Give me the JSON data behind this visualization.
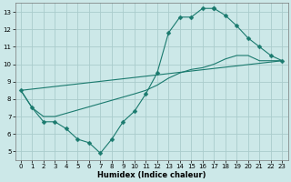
{
  "xlabel": "Humidex (Indice chaleur)",
  "xlim": [
    -0.5,
    23.5
  ],
  "ylim": [
    4.5,
    13.5
  ],
  "xticks": [
    0,
    1,
    2,
    3,
    4,
    5,
    6,
    7,
    8,
    9,
    10,
    11,
    12,
    13,
    14,
    15,
    16,
    17,
    18,
    19,
    20,
    21,
    22,
    23
  ],
  "yticks": [
    5,
    6,
    7,
    8,
    9,
    10,
    11,
    12,
    13
  ],
  "bg_color": "#cce8e8",
  "grid_color": "#aacccc",
  "line_color": "#1a7a6e",
  "curve1_x": [
    0,
    1,
    2,
    3,
    4,
    5,
    6,
    7,
    8,
    9,
    10,
    11,
    12,
    13,
    14,
    15,
    16,
    17
  ],
  "curve1_y": [
    8.5,
    7.5,
    6.7,
    6.7,
    6.3,
    5.7,
    5.5,
    4.9,
    5.7,
    6.7,
    7.3,
    8.3,
    9.5,
    11.8,
    12.7,
    12.7,
    13.2,
    13.2
  ],
  "curve2_x": [
    0,
    23
  ],
  "curve2_y": [
    8.5,
    10.2
  ],
  "curve3_x": [
    0,
    1,
    2,
    3,
    10,
    11,
    12,
    13,
    14,
    15,
    16,
    17,
    18,
    19,
    20,
    21,
    22,
    23
  ],
  "curve3_y": [
    8.5,
    7.5,
    7.0,
    7.0,
    8.3,
    8.5,
    8.8,
    9.2,
    9.5,
    9.7,
    9.8,
    10.0,
    10.3,
    10.5,
    10.5,
    10.2,
    10.2,
    10.2
  ],
  "curve4_x": [
    17,
    18,
    19,
    20,
    21,
    22,
    23
  ],
  "curve4_y": [
    13.2,
    12.8,
    12.2,
    11.5,
    11.0,
    10.5,
    10.2
  ],
  "marker_size": 2.5
}
